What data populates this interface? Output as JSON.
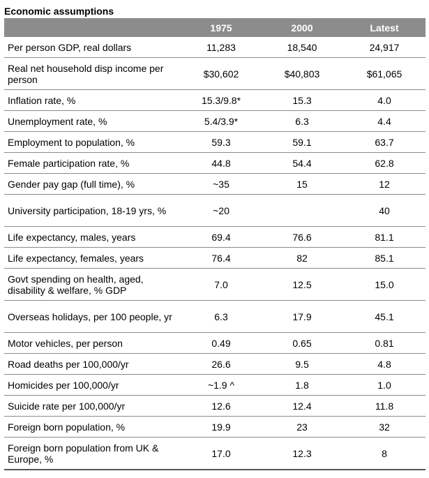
{
  "title": "Economic assumptions",
  "columns": [
    "",
    "1975",
    "2000",
    "Latest"
  ],
  "rows": [
    {
      "label": "Per person GDP, real dollars",
      "v1975": "11,283",
      "v2000": "18,540",
      "latest": "24,917"
    },
    {
      "label": "Real net household disp income per person",
      "v1975": "$30,602",
      "v2000": "$40,803",
      "latest": "$61,065"
    },
    {
      "label": "Inflation rate, %",
      "v1975": "15.3/9.8*",
      "v2000": "15.3",
      "latest": "4.0"
    },
    {
      "label": "Unemployment rate, %",
      "v1975": "5.4/3.9*",
      "v2000": "6.3",
      "latest": "4.4"
    },
    {
      "label": "Employment to population, %",
      "v1975": "59.3",
      "v2000": "59.1",
      "latest": "63.7"
    },
    {
      "label": "Female participation rate, %",
      "v1975": "44.8",
      "v2000": "54.4",
      "latest": "62.8"
    },
    {
      "label": "Gender pay gap (full time), %",
      "v1975": "~35",
      "v2000": "15",
      "latest": "12"
    },
    {
      "label": "University participation, 18-19 yrs, %",
      "v1975": "~20",
      "v2000": "",
      "latest": "40"
    },
    {
      "label": "Life expectancy, males, years",
      "v1975": "69.4",
      "v2000": "76.6",
      "latest": "81.1"
    },
    {
      "label": "Life expectancy, females, years",
      "v1975": "76.4",
      "v2000": "82",
      "latest": "85.1"
    },
    {
      "label": "Govt spending on health, aged, disability & welfare, % GDP",
      "v1975": "7.0",
      "v2000": "12.5",
      "latest": "15.0"
    },
    {
      "label": "Overseas holidays, per 100 people, yr",
      "v1975": "6.3",
      "v2000": "17.9",
      "latest": "45.1"
    },
    {
      "label": "Motor vehicles, per person",
      "v1975": "0.49",
      "v2000": "0.65",
      "latest": "0.81"
    },
    {
      "label": "Road deaths per 100,000/yr",
      "v1975": "26.6",
      "v2000": "9.5",
      "latest": "4.8"
    },
    {
      "label": "Homicides per 100,000/yr",
      "v1975": "~1.9 ^",
      "v2000": "1.8",
      "latest": "1.0"
    },
    {
      "label": "Suicide rate per 100,000/yr",
      "v1975": "12.6",
      "v2000": "12.4",
      "latest": "11.8"
    },
    {
      "label": "Foreign born population, %",
      "v1975": "19.9",
      "v2000": "23",
      "latest": "32"
    },
    {
      "label": "Foreign born population from UK & Europe, %",
      "v1975": "17.0",
      "v2000": "12.3",
      "latest": "8"
    }
  ]
}
